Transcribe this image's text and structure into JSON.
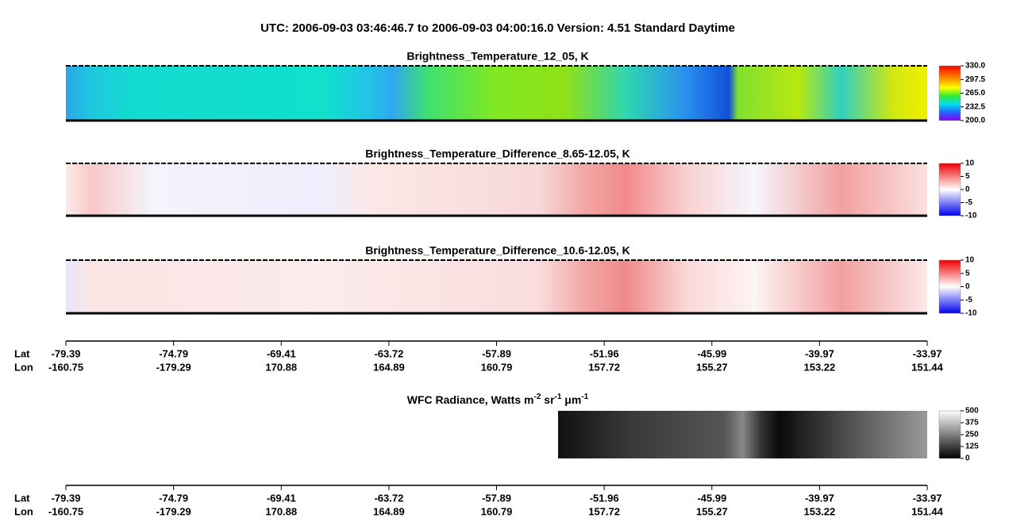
{
  "title": "UTC:  2006-09-03   03:46:46.7  to  2006-09-03   04:00:16.0    Version: 4.51  Standard Daytime",
  "panels": [
    {
      "title": "Brightness_Temperature_12_05, K",
      "colorbar_ticks": [
        "330.0",
        "297.5",
        "265.0",
        "232.5",
        "200.0"
      ]
    },
    {
      "title": "Brightness_Temperature_Difference_8.65-12.05, K",
      "colorbar_ticks": [
        "10",
        "5",
        "0",
        "-5",
        "-10"
      ]
    },
    {
      "title": "Brightness_Temperature_Difference_10.6-12.05, K",
      "colorbar_ticks": [
        "10",
        "5",
        "0",
        "-5",
        "-10"
      ]
    }
  ],
  "wfc": {
    "title_parts": [
      "WFC Radiance, Watts m",
      "-2",
      " sr",
      "-1",
      " μm",
      "-1"
    ],
    "colorbar_ticks": [
      "500",
      "375",
      "250",
      "125",
      "0"
    ]
  },
  "axes": [
    {
      "lat_label": "Lat",
      "lon_label": "Lon",
      "lat": [
        "-79.39",
        "-74.79",
        "-69.41",
        "-63.72",
        "-57.89",
        "-51.96",
        "-45.99",
        "-39.97",
        "-33.97"
      ],
      "lon": [
        "-160.75",
        "-179.29",
        "170.88",
        "164.89",
        "160.79",
        "157.72",
        "155.27",
        "153.22",
        "151.44"
      ]
    },
    {
      "lat_label": "Lat",
      "lon_label": "Lon",
      "lat": [
        "-79.39",
        "-74.79",
        "-69.41",
        "-63.72",
        "-57.89",
        "-51.96",
        "-45.99",
        "-39.97",
        "-33.97"
      ],
      "lon": [
        "-160.75",
        "-179.29",
        "170.88",
        "164.89",
        "160.79",
        "157.72",
        "155.27",
        "153.22",
        "151.44"
      ]
    }
  ]
}
